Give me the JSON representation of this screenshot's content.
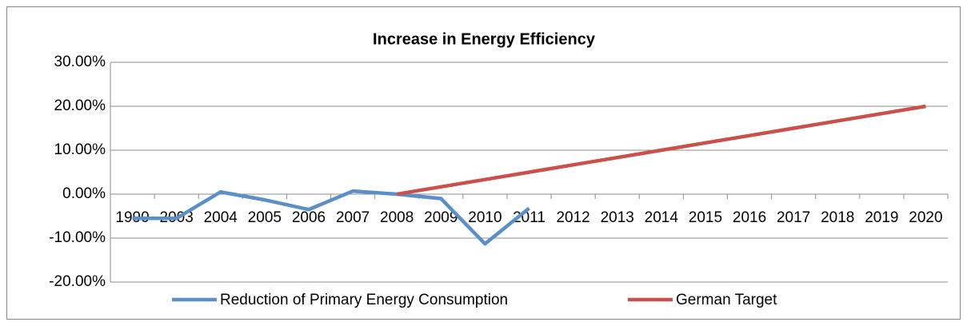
{
  "chart_data": {
    "type": "line",
    "title": "Increase in Energy Efficiency",
    "categories": [
      "1990",
      "2003",
      "2004",
      "2005",
      "2006",
      "2007",
      "2008",
      "2009",
      "2010",
      "2011",
      "2012",
      "2013",
      "2014",
      "2015",
      "2016",
      "2017",
      "2018",
      "2019",
      "2020"
    ],
    "series": [
      {
        "name": "Reduction of Primary Energy Consumption",
        "color": "#5b8fc7",
        "values": [
          -5.5,
          -5.5,
          0.5,
          -1.3,
          -3.5,
          0.7,
          0,
          -1.0,
          -11.3,
          -3.2,
          null,
          null,
          null,
          null,
          null,
          null,
          null,
          null,
          null
        ]
      },
      {
        "name": "German Target",
        "color": "#c9504c",
        "values": [
          null,
          null,
          null,
          null,
          null,
          null,
          0,
          1.67,
          3.33,
          5,
          6.67,
          8.33,
          10,
          11.67,
          13.33,
          15,
          16.67,
          18.33,
          20
        ]
      }
    ],
    "ylim": [
      -20,
      30
    ],
    "yticks": [
      {
        "value": -20,
        "label": "-20.00%"
      },
      {
        "value": -10,
        "label": "-10.00%"
      },
      {
        "value": 0,
        "label": "0.00%"
      },
      {
        "value": 10,
        "label": "10.00%"
      },
      {
        "value": 20,
        "label": "20.00%"
      },
      {
        "value": 30,
        "label": "30.00%"
      }
    ],
    "grid": true,
    "legend": "bottom"
  }
}
